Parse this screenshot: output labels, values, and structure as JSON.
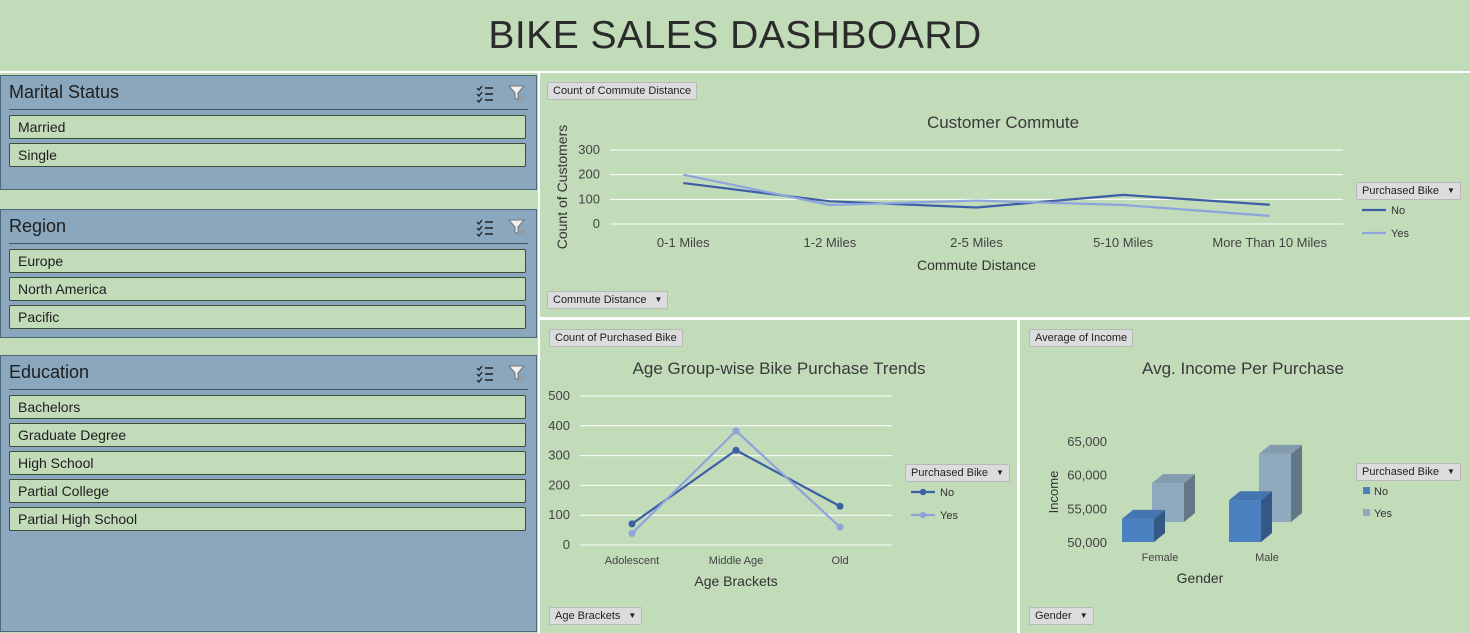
{
  "dashboard": {
    "title": "BIKE SALES DASHBOARD"
  },
  "slicers": {
    "marital": {
      "title": "Marital Status",
      "items": [
        "Married",
        "Single"
      ]
    },
    "region": {
      "title": "Region",
      "items": [
        "Europe",
        "North America",
        "Pacific"
      ]
    },
    "education": {
      "title": "Education",
      "items": [
        "Bachelors",
        "Graduate Degree",
        "High School",
        "Partial College",
        "Partial High School"
      ]
    }
  },
  "chart_data": [
    {
      "id": "commute",
      "type": "line",
      "title": "Customer Commute",
      "field_button": "Count of Commute Distance",
      "axis_button": "Commute Distance",
      "legend_title": "Purchased Bike",
      "xlabel": "Commute Distance",
      "ylabel": "Count of Customers",
      "categories": [
        "0-1 Miles",
        "1-2 Miles",
        "2-5 Miles",
        "5-10 Miles",
        "More Than 10 Miles"
      ],
      "ylim": [
        0,
        300
      ],
      "yticks": [
        "0",
        "100",
        "200",
        "300"
      ],
      "markers": false,
      "series": [
        {
          "name": "No",
          "color": "#3c5fa6",
          "values": [
            166,
            92,
            67,
            118,
            78
          ]
        },
        {
          "name": "Yes",
          "color": "#8ea4dc",
          "values": [
            200,
            77,
            95,
            77,
            33
          ]
        }
      ]
    },
    {
      "id": "age",
      "type": "line",
      "title": "Age Group-wise Bike Purchase Trends",
      "field_button": "Count of Purchased Bike",
      "axis_button": "Age Brackets",
      "legend_title": "Purchased Bike",
      "xlabel": "Age Brackets",
      "ylabel": "",
      "categories": [
        "Adolescent",
        "Middle Age",
        "Old"
      ],
      "ylim": [
        0,
        500
      ],
      "yticks": [
        "0",
        "100",
        "200",
        "300",
        "400",
        "500"
      ],
      "markers": true,
      "series": [
        {
          "name": "No",
          "color": "#3c5fa6",
          "values": [
            71,
            318,
            130
          ]
        },
        {
          "name": "Yes",
          "color": "#8ea4dc",
          "values": [
            39,
            383,
            60
          ]
        }
      ]
    },
    {
      "id": "income",
      "type": "bar",
      "title": "Avg. Income Per Purchase",
      "field_button": "Average of Income",
      "axis_button": "Gender",
      "legend_title": "Purchased Bike",
      "xlabel": "Gender",
      "ylabel": "Income",
      "categories": [
        "Female",
        "Male"
      ],
      "ylim": [
        50000,
        65000
      ],
      "yticks": [
        "50,000",
        "55,000",
        "60,000",
        "65,000"
      ],
      "series": [
        {
          "name": "No",
          "color": "#4a7fc0",
          "values": [
            53440,
            56208
          ]
        },
        {
          "name": "Yes",
          "color": "#8faabf",
          "values": [
            55774,
            60124
          ]
        }
      ]
    }
  ]
}
